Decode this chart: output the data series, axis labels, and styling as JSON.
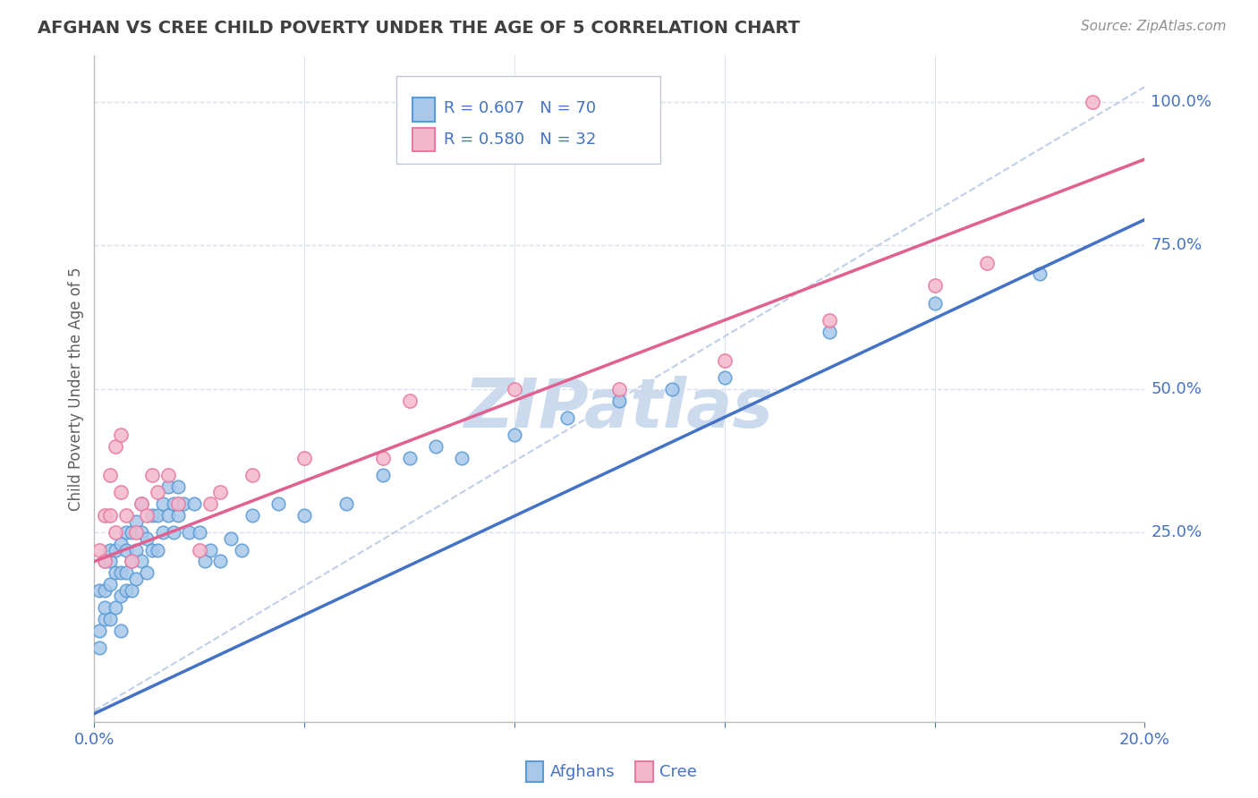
{
  "title": "AFGHAN VS CREE CHILD POVERTY UNDER THE AGE OF 5 CORRELATION CHART",
  "source": "Source: ZipAtlas.com",
  "ylabel": "Child Poverty Under the Age of 5",
  "xlim": [
    0.0,
    0.2
  ],
  "ylim": [
    -0.08,
    1.08
  ],
  "xticks": [
    0.0,
    0.04,
    0.08,
    0.12,
    0.16,
    0.2
  ],
  "ytick_right_labels": [
    "25.0%",
    "50.0%",
    "75.0%",
    "100.0%"
  ],
  "ytick_right_values": [
    0.25,
    0.5,
    0.75,
    1.0
  ],
  "afghan_R": 0.607,
  "afghan_N": 70,
  "cree_R": 0.58,
  "cree_N": 32,
  "afghan_color": "#a8c8ea",
  "afghan_edge_color": "#5b9bd5",
  "cree_color": "#f4b8cc",
  "cree_edge_color": "#e879a0",
  "afghan_line_color": "#4472c4",
  "cree_line_color": "#e06090",
  "diagonal_color": "#c0cfe8",
  "background_color": "#ffffff",
  "grid_color": "#d8dff0",
  "title_color": "#404040",
  "source_color": "#909090",
  "legend_text_color": "#4472c4",
  "watermark_color": "#ccdaee",
  "afghan_x": [
    0.001,
    0.001,
    0.001,
    0.002,
    0.002,
    0.002,
    0.002,
    0.003,
    0.003,
    0.003,
    0.003,
    0.004,
    0.004,
    0.004,
    0.005,
    0.005,
    0.005,
    0.005,
    0.006,
    0.006,
    0.006,
    0.006,
    0.007,
    0.007,
    0.007,
    0.008,
    0.008,
    0.008,
    0.009,
    0.009,
    0.009,
    0.01,
    0.01,
    0.011,
    0.011,
    0.012,
    0.012,
    0.013,
    0.013,
    0.014,
    0.014,
    0.015,
    0.015,
    0.016,
    0.016,
    0.017,
    0.018,
    0.019,
    0.02,
    0.021,
    0.022,
    0.024,
    0.026,
    0.028,
    0.03,
    0.035,
    0.04,
    0.048,
    0.055,
    0.06,
    0.065,
    0.07,
    0.08,
    0.09,
    0.1,
    0.11,
    0.12,
    0.14,
    0.16,
    0.18
  ],
  "afghan_y": [
    0.05,
    0.08,
    0.15,
    0.1,
    0.12,
    0.15,
    0.2,
    0.1,
    0.16,
    0.2,
    0.22,
    0.12,
    0.18,
    0.22,
    0.08,
    0.14,
    0.18,
    0.23,
    0.15,
    0.18,
    0.22,
    0.25,
    0.15,
    0.2,
    0.25,
    0.17,
    0.22,
    0.27,
    0.2,
    0.25,
    0.3,
    0.18,
    0.24,
    0.22,
    0.28,
    0.22,
    0.28,
    0.25,
    0.3,
    0.28,
    0.33,
    0.25,
    0.3,
    0.28,
    0.33,
    0.3,
    0.25,
    0.3,
    0.25,
    0.2,
    0.22,
    0.2,
    0.24,
    0.22,
    0.28,
    0.3,
    0.28,
    0.3,
    0.35,
    0.38,
    0.4,
    0.38,
    0.42,
    0.45,
    0.48,
    0.5,
    0.52,
    0.6,
    0.65,
    0.7
  ],
  "cree_x": [
    0.001,
    0.002,
    0.002,
    0.003,
    0.003,
    0.004,
    0.004,
    0.005,
    0.005,
    0.006,
    0.007,
    0.008,
    0.009,
    0.01,
    0.011,
    0.012,
    0.014,
    0.016,
    0.02,
    0.022,
    0.024,
    0.03,
    0.04,
    0.055,
    0.06,
    0.08,
    0.1,
    0.12,
    0.14,
    0.16,
    0.17,
    0.19
  ],
  "cree_y": [
    0.22,
    0.2,
    0.28,
    0.28,
    0.35,
    0.25,
    0.4,
    0.32,
    0.42,
    0.28,
    0.2,
    0.25,
    0.3,
    0.28,
    0.35,
    0.32,
    0.35,
    0.3,
    0.22,
    0.3,
    0.32,
    0.35,
    0.38,
    0.38,
    0.48,
    0.5,
    0.5,
    0.55,
    0.62,
    0.68,
    0.72,
    1.0
  ],
  "afghan_intercept": -0.065,
  "afghan_slope": 4.3,
  "cree_intercept": 0.2,
  "cree_slope": 3.5
}
